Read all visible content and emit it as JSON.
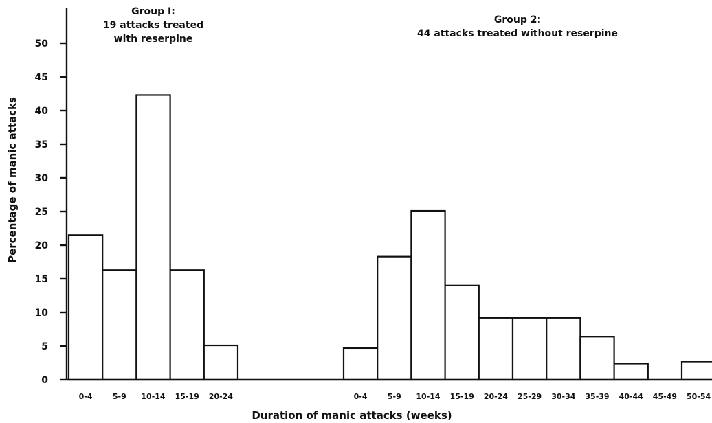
{
  "chart_data": {
    "type": "bar",
    "xlabel": "Duration of manic attacks (weeks)",
    "ylabel": "Percentage of manic attacks",
    "ylim": [
      0,
      50
    ],
    "yticks": [
      0,
      5,
      10,
      15,
      20,
      25,
      30,
      35,
      40,
      45,
      50
    ],
    "grid": false,
    "groups": [
      {
        "title_lines": [
          "Group I:",
          "19 attacks treated",
          "with reserpine"
        ],
        "categories": [
          "0-4",
          "5-9",
          "10-14",
          "15-19",
          "20-24"
        ],
        "values": [
          21.5,
          16.3,
          42.3,
          16.3,
          5.1
        ]
      },
      {
        "title_lines": [
          "Group 2:",
          "44 attacks treated without reserpine"
        ],
        "categories": [
          "0-4",
          "5-9",
          "10-14",
          "15-19",
          "20-24",
          "25-29",
          "30-34",
          "35-39",
          "40-44",
          "45-49",
          "50-54"
        ],
        "values": [
          4.7,
          18.3,
          25.1,
          14.0,
          9.2,
          9.2,
          9.2,
          6.4,
          2.4,
          0,
          2.7
        ]
      }
    ]
  }
}
